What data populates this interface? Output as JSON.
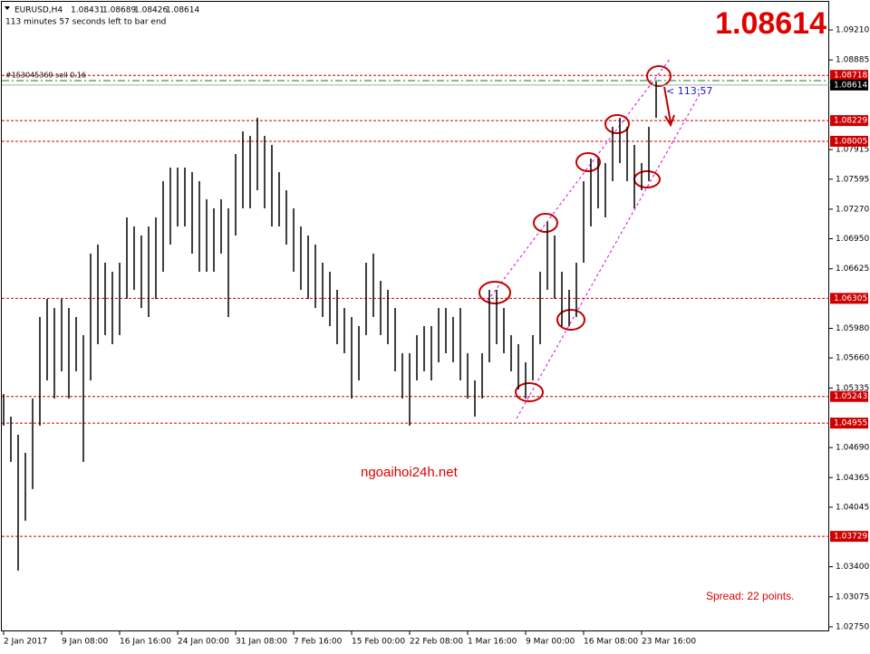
{
  "chart_data": {
    "type": "ohlc",
    "symbol": "EURUSD,H4",
    "open": 1.08431,
    "high_price": 1.08689,
    "low_price": 1.08426,
    "close": 1.08614,
    "timer": "113 minutes 57 seconds left to bar end",
    "order": "#153045369 sell 0.16",
    "order_price": 1.08661,
    "countdown": "< 113:57",
    "watermark": "ngoaihoi24h.net",
    "spread": "Spread: 22 points.",
    "color": "#000000",
    "level_color": "#cc0000",
    "order_color": "#1a7a1a",
    "levels": [
      1.08718,
      1.08229,
      1.08005,
      1.06305,
      1.05243,
      1.04955,
      1.03729
    ],
    "ylim": [
      1.02701,
      1.09534
    ],
    "yticks": [
      {
        "value": 1.0921,
        "label": "1.09210"
      },
      1.08885,
      1.07915,
      1.07595,
      {
        "value": 1.0727,
        "label": "1.07270"
      },
      {
        "value": 1.0695,
        "label": "1.06950"
      },
      1.06625,
      {
        "value": 1.0598,
        "label": "1.05980"
      },
      {
        "value": 1.0566,
        "label": "1.05660"
      },
      1.05335,
      {
        "value": 1.0469,
        "label": "1.04690"
      },
      1.04365,
      1.04045,
      {
        "value": 1.034,
        "label": "1.03400"
      },
      1.03075,
      {
        "value": 1.0275,
        "label": "1.02750"
      }
    ],
    "grid": false,
    "categories": [
      "2 Jan 2017",
      null,
      null,
      null,
      null,
      null,
      null,
      null,
      "9 Jan 08:00",
      null,
      null,
      null,
      null,
      null,
      null,
      null,
      "16 Jan 16:00",
      null,
      null,
      null,
      null,
      null,
      null,
      null,
      "24 Jan 00:00",
      null,
      null,
      null,
      null,
      null,
      null,
      null,
      "31 Jan 08:00",
      null,
      null,
      null,
      null,
      null,
      null,
      null,
      "7 Feb 16:00",
      null,
      null,
      null,
      null,
      null,
      null,
      null,
      "15 Feb 00:00",
      null,
      null,
      null,
      null,
      null,
      null,
      null,
      "22 Feb 08:00",
      null,
      null,
      null,
      null,
      null,
      null,
      null,
      "1 Mar 16:00",
      null,
      null,
      null,
      null,
      null,
      null,
      null,
      "9 Mar 00:00",
      null,
      null,
      null,
      null,
      null,
      null,
      null,
      "16 Mar 08:00",
      null,
      null,
      null,
      null,
      null,
      null,
      null,
      "23 Mar 16:00",
      null,
      null
    ],
    "high": [
      1.0527,
      1.05025,
      1.04829,
      1.04633,
      1.05221,
      1.06103,
      1.06299,
      1.06201,
      1.06299,
      1.06201,
      1.06103,
      1.05907,
      1.06789,
      1.06887,
      1.06691,
      1.06593,
      1.06691,
      1.07181,
      1.07083,
      1.06985,
      1.07083,
      1.07181,
      1.07573,
      1.0772,
      1.0772,
      1.0772,
      1.07671,
      1.07573,
      1.07377,
      1.07279,
      1.07377,
      1.07279,
      1.07867,
      1.08112,
      1.08063,
      1.08259,
      1.08063,
      1.07965,
      1.07671,
      1.07475,
      1.07279,
      1.07083,
      1.06985,
      1.06887,
      1.06691,
      1.06593,
      1.06397,
      1.06201,
      1.06103,
      1.06005,
      1.06691,
      1.06789,
      1.06495,
      1.06397,
      1.06201,
      1.05711,
      1.05711,
      1.05907,
      1.06005,
      1.06005,
      1.06201,
      1.06201,
      1.06103,
      1.06201,
      1.05711,
      1.05417,
      1.05711,
      1.06397,
      1.06397,
      1.06201,
      1.05907,
      1.05809,
      1.05613,
      1.05907,
      1.06593,
      1.07132,
      1.06985,
      1.06593,
      1.06397,
      1.06691,
      1.07573,
      1.07818,
      1.07818,
      1.07769,
      1.08161,
      1.08259,
      1.08161,
      1.07965,
      1.07769,
      1.08161,
      1.08651
    ],
    "low": [
      1.04927,
      1.04535,
      1.03359,
      1.03898,
      1.04241,
      1.04927,
      1.05417,
      1.05221,
      1.05515,
      1.05221,
      1.05515,
      1.04535,
      1.05417,
      1.05809,
      1.05907,
      1.05809,
      1.05907,
      1.06299,
      1.06397,
      1.06201,
      1.06103,
      1.06299,
      1.06593,
      1.06887,
      1.07083,
      1.07083,
      1.06789,
      1.06593,
      1.06593,
      1.06593,
      1.06789,
      1.06103,
      1.06985,
      1.07279,
      1.07279,
      1.07475,
      1.07279,
      1.07083,
      1.07083,
      1.06887,
      1.06593,
      1.06397,
      1.06299,
      1.06201,
      1.06103,
      1.06005,
      1.05809,
      1.05711,
      1.05221,
      1.05417,
      1.05907,
      1.06103,
      1.05907,
      1.05809,
      1.05515,
      1.05221,
      1.04927,
      1.05417,
      1.05515,
      1.05417,
      1.05613,
      1.05711,
      1.05613,
      1.05417,
      1.05221,
      1.05025,
      1.05221,
      1.05613,
      1.05809,
      1.05711,
      1.05515,
      1.05319,
      1.05221,
      1.05417,
      1.05809,
      1.06397,
      1.06299,
      1.06005,
      1.06005,
      1.06103,
      1.06691,
      1.07083,
      1.07279,
      1.07181,
      1.07573,
      1.07769,
      1.07573,
      1.07279,
      1.07475,
      1.07573,
      1.08259
    ]
  }
}
